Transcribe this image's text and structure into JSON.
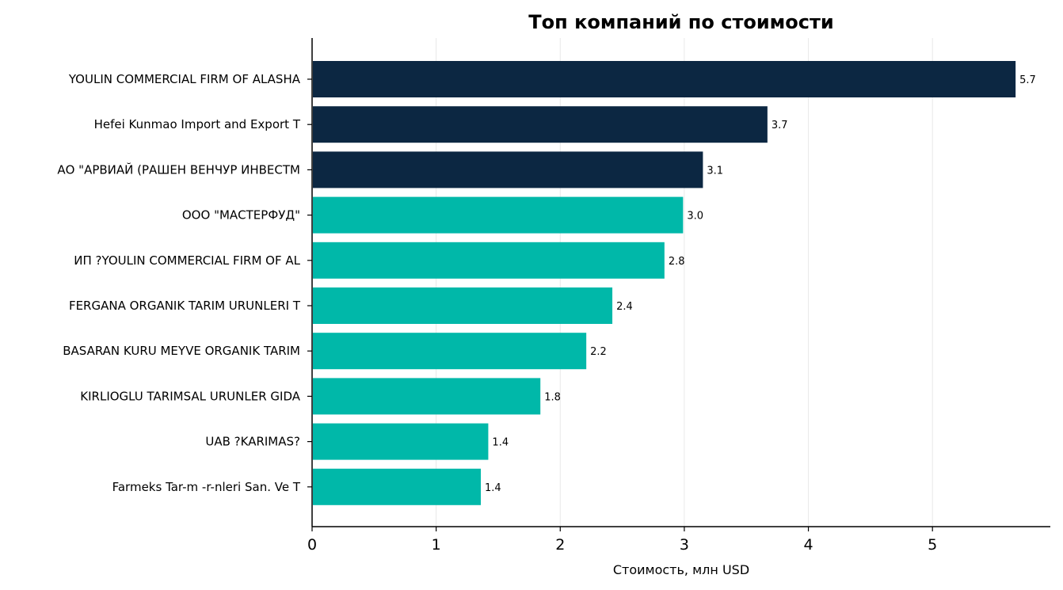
{
  "chart_data": {
    "type": "bar",
    "orientation": "horizontal",
    "title": "Топ компаний по стоимости",
    "xlabel": "Стоимость, млн USD",
    "ylabel": "",
    "xlim": [
      0,
      5.95
    ],
    "xticks": [
      0,
      1,
      2,
      3,
      4,
      5
    ],
    "grid": "vertical",
    "legend": "none",
    "categories": [
      "YOULIN COMMERCIAL FIRM OF ALASHA",
      "Hefei Kunmao Import and Export T",
      "АО \"АРВИАЙ (РАШЕН ВЕНЧУР ИНВЕСТМ",
      "ООО \"МАСТЕРФУД\"",
      "ИП ?YOULIN COMMERCIAL FIRM OF AL",
      "FERGANA ORGANIK TARIM URUNLERI T",
      "BASARAN KURU MEYVE ORGANIK TARIM",
      "KIRLIOGLU TARIMSAL URUNLER GIDA ",
      "UAB ?KARIMAS?",
      "Farmeks Tar-m -r-nleri San. Ve T"
    ],
    "values": [
      5.67,
      3.67,
      3.15,
      2.99,
      2.84,
      2.42,
      2.21,
      1.84,
      1.42,
      1.36
    ],
    "value_labels": [
      "5.7",
      "3.7",
      "3.1",
      "3.0",
      "2.8",
      "2.4",
      "2.2",
      "1.8",
      "1.4",
      "1.4"
    ],
    "top_n_highlighted": 3
  },
  "colors": {
    "highlight": "#0c2742",
    "default": "#00b8a9"
  }
}
